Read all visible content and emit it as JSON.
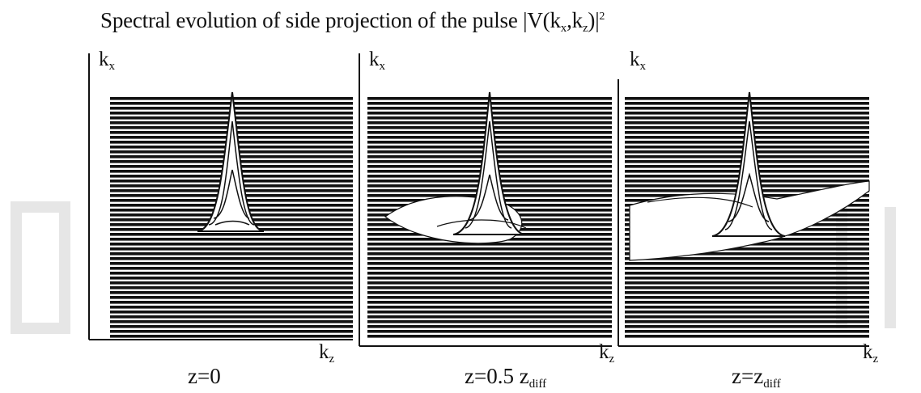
{
  "figure": {
    "title": "Spectral evolution of side projection of the pulse |V(kx,kz)|²",
    "title_parts": {
      "prefix": "Spectral evolution of side projection of the pulse |V(k",
      "sub1": "x",
      "mid": ",k",
      "sub2": "z",
      "suffix": ")|",
      "sup": "2"
    },
    "panels": [
      {
        "y_axis": "k",
        "y_sub": "x",
        "x_axis": "k",
        "x_sub": "z",
        "caption": "z=0",
        "caption_sub": ""
      },
      {
        "y_axis": "k",
        "y_sub": "x",
        "x_axis": "k",
        "x_sub": "z",
        "caption": "z=0.5 z",
        "caption_sub": "diff"
      },
      {
        "y_axis": "k",
        "y_sub": "x",
        "x_axis": "k",
        "x_sub": "z",
        "caption": "z=z",
        "caption_sub": "diff"
      }
    ],
    "colors": {
      "lines": "#111111",
      "background": "#ffffff",
      "watermark": "#e6e6e6"
    }
  }
}
